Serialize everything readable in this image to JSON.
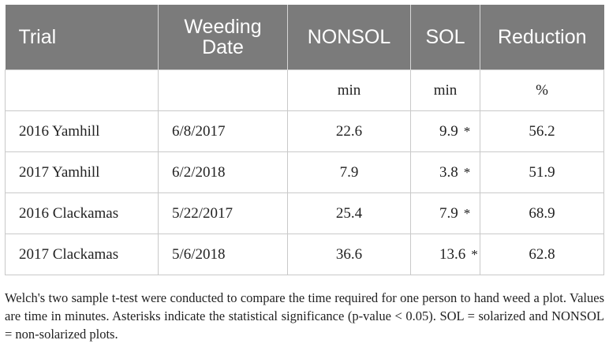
{
  "table": {
    "headers": {
      "trial": "Trial",
      "weeding_date_line1": "Weeding",
      "weeding_date_line2": "Date",
      "nonsol": "NONSOL",
      "sol": "SOL",
      "reduction": "Reduction"
    },
    "units": {
      "trial": "",
      "weeding_date": "",
      "nonsol": "min",
      "sol": "min",
      "reduction": "%"
    },
    "rows": [
      {
        "trial": "2016 Yamhill",
        "weeding_date": "6/8/2017",
        "nonsol": "22.6",
        "sol": "9.9",
        "sig": "*",
        "reduction": "56.2"
      },
      {
        "trial": "2017 Yamhill",
        "weeding_date": "6/2/2018",
        "nonsol": "7.9",
        "sol": "3.8",
        "sig": "*",
        "reduction": "51.9"
      },
      {
        "trial": "2016 Clackamas",
        "weeding_date": "5/22/2017",
        "nonsol": "25.4",
        "sol": "7.9",
        "sig": "*",
        "reduction": "68.9"
      },
      {
        "trial": "2017 Clackamas",
        "weeding_date": "5/6/2018",
        "nonsol": "36.6",
        "sol": "13.6",
        "sig": "*",
        "reduction": "62.8"
      }
    ]
  },
  "footnote": "Welch's two sample t-test were conducted to compare the time required for one person to hand weed a plot. Values are time in minutes. Asterisks indicate the statistical significance (p-value < 0.05). SOL = solarized and NONSOL = non-solarized plots.",
  "colors": {
    "header_bg": "#7b7b7b",
    "header_text": "#ffffff",
    "grid": "#c9c9c9",
    "body_text": "#222222"
  }
}
